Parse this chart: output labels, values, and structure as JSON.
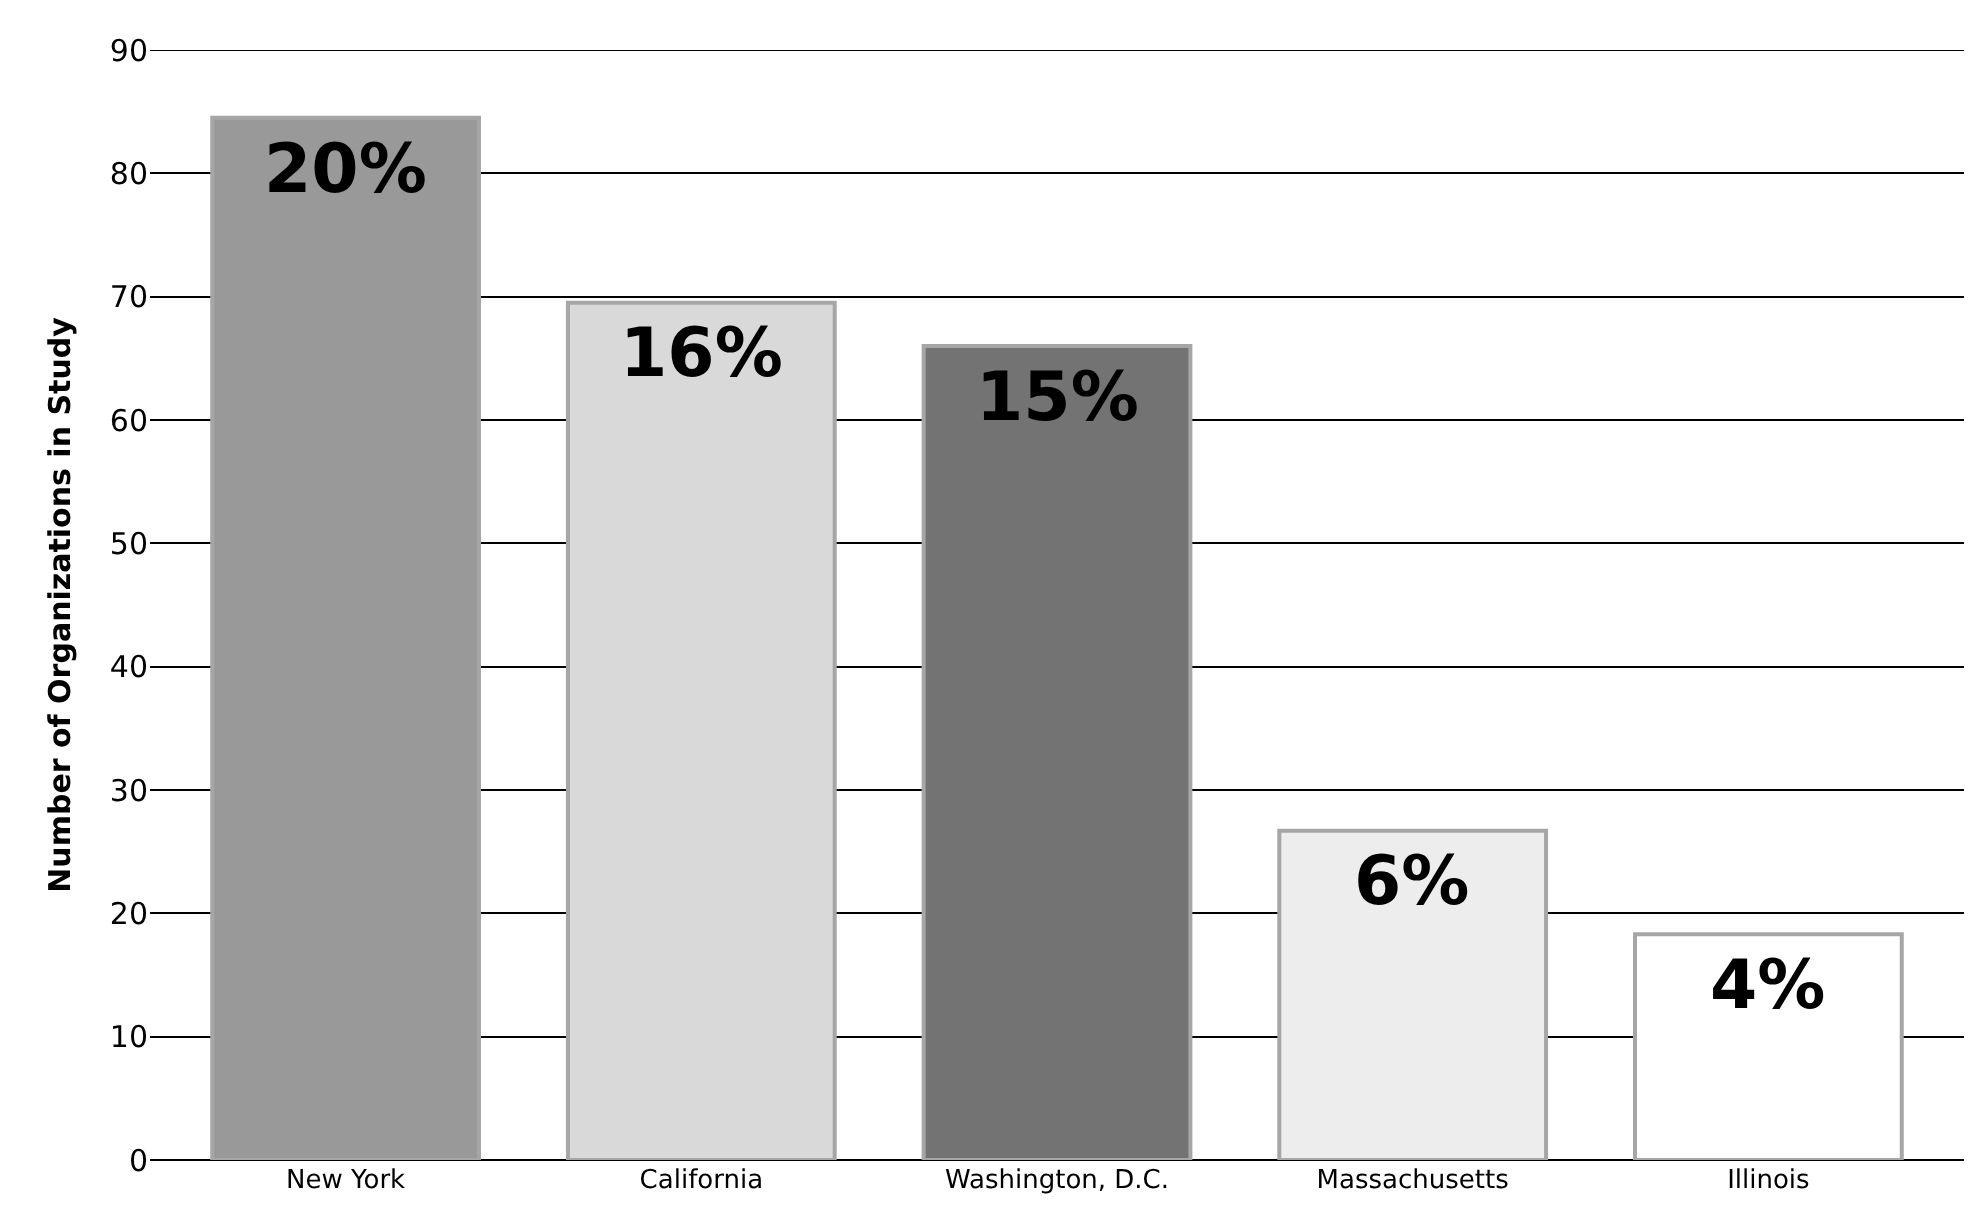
{
  "chart_data": {
    "type": "bar",
    "ylabel": "Number of Organizations in Study",
    "categories": [
      "New York",
      "California",
      "Washington, D.C.",
      "Massachusetts",
      "Illinois"
    ],
    "values": [
      84.5,
      69.5,
      66,
      26.7,
      18.3
    ],
    "colors": [
      "#999999",
      "#d9d9d9",
      "#737373",
      "#ededed",
      "#ffffff"
    ],
    "annotations": [
      {
        "text": "20%",
        "x": "New York",
        "y": 84.5
      },
      {
        "text": "16%",
        "x": "California",
        "y": 69.5
      },
      {
        "text": "15%",
        "x": "Washington, D.C.",
        "y": 66
      },
      {
        "text": "6%",
        "x": "Massachusetts",
        "y": 26.7
      },
      {
        "text": "4%",
        "x": "Illinois",
        "y": 18.3
      }
    ],
    "ylim": [
      0,
      90
    ],
    "yticks": [
      0,
      10,
      20,
      30,
      40,
      50,
      60,
      70,
      80,
      90
    ],
    "grid": "y"
  }
}
